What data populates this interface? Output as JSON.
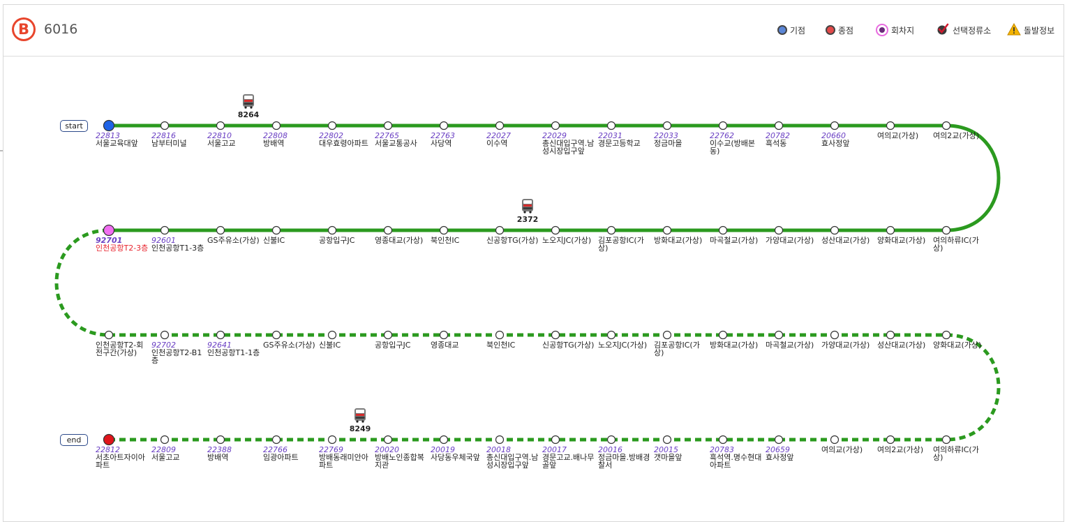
{
  "route": {
    "number": "6016",
    "logo_letter": "B",
    "logo_color": "#e8452c"
  },
  "legend": [
    {
      "key": "origin",
      "label": "기점",
      "icon": "blue-circle-icon",
      "color": "#5b86d6"
    },
    {
      "key": "terminus",
      "label": "종점",
      "icon": "red-circle-icon",
      "color": "#e8232d"
    },
    {
      "key": "turn",
      "label": "회차지",
      "icon": "pink-circle-icon",
      "color": "#e86be0"
    },
    {
      "key": "selected",
      "label": "선택정류소",
      "icon": "check-marker-icon",
      "color": "#c0192e"
    },
    {
      "key": "alert",
      "label": "돌발정보",
      "icon": "warning-triangle-icon",
      "color": "#f4b400"
    }
  ],
  "endpoints": {
    "start": "start",
    "end": "end"
  },
  "colors": {
    "line": "#2b9a1f",
    "origin": "#1f63e6",
    "terminus": "#e0151b",
    "turn": "#f06ef0"
  },
  "rows": [
    {
      "dashed": false,
      "direction": "ltr",
      "stops": [
        {
          "id": "22813",
          "name": "서울교육대앞",
          "marker": "origin"
        },
        {
          "id": "22816",
          "name": "남부터미널"
        },
        {
          "id": "22810",
          "name": "서울고교"
        },
        {
          "id": "22808",
          "name": "방배역"
        },
        {
          "id": "22802",
          "name": "대우효령아파트"
        },
        {
          "id": "22765",
          "name": "서울교통공사"
        },
        {
          "id": "22763",
          "name": "사당역"
        },
        {
          "id": "22027",
          "name": "이수역"
        },
        {
          "id": "22029",
          "name": "총신대입구역.남성시장입구앞"
        },
        {
          "id": "22031",
          "name": "경문고등학교"
        },
        {
          "id": "22033",
          "name": "정금마을"
        },
        {
          "id": "22762",
          "name": "이수교(방배본동)"
        },
        {
          "id": "20782",
          "name": "흑석동"
        },
        {
          "id": "20660",
          "name": "효사정앞"
        },
        {
          "id": "",
          "name": "여의교(가상)"
        },
        {
          "id": "",
          "name": "여의2교(가상)"
        }
      ]
    },
    {
      "dashed": false,
      "direction": "rtl",
      "stops": [
        {
          "id": "92701",
          "name": "인천공항T2-3층",
          "marker": "turn",
          "highlight": true
        },
        {
          "id": "92601",
          "name": "인천공항T1-3층"
        },
        {
          "id": "",
          "name": "GS주유소(가상)"
        },
        {
          "id": "",
          "name": "신불IC"
        },
        {
          "id": "",
          "name": "공항입구JC"
        },
        {
          "id": "",
          "name": "영종대교(가상)"
        },
        {
          "id": "",
          "name": "북인천IC"
        },
        {
          "id": "",
          "name": "신공항TG(가상)"
        },
        {
          "id": "",
          "name": "노오지JC(가상)"
        },
        {
          "id": "",
          "name": "김포공항IC(가상)"
        },
        {
          "id": "",
          "name": "방화대교(가상)"
        },
        {
          "id": "",
          "name": "마곡철교(가상)"
        },
        {
          "id": "",
          "name": "가양대교(가상)"
        },
        {
          "id": "",
          "name": "성산대교(가상)"
        },
        {
          "id": "",
          "name": "양화대교(가상)"
        },
        {
          "id": "",
          "name": "여의하류IC(가상)"
        }
      ]
    },
    {
      "dashed": true,
      "direction": "ltr",
      "stops": [
        {
          "id": "",
          "name": "인천공항T2-회전구간(가상)"
        },
        {
          "id": "92702",
          "name": "인천공항T2-B1층"
        },
        {
          "id": "92641",
          "name": "인천공항T1-1층"
        },
        {
          "id": "",
          "name": "GS주유소(가상)"
        },
        {
          "id": "",
          "name": "신불IC"
        },
        {
          "id": "",
          "name": "공항입구JC"
        },
        {
          "id": "",
          "name": "영종대교"
        },
        {
          "id": "",
          "name": "북인천IC"
        },
        {
          "id": "",
          "name": "신공항TG(가상)"
        },
        {
          "id": "",
          "name": "노오지JC(가상)"
        },
        {
          "id": "",
          "name": "김포공항IC(가상)"
        },
        {
          "id": "",
          "name": "방화대교(가상)"
        },
        {
          "id": "",
          "name": "마곡철교(가상)"
        },
        {
          "id": "",
          "name": "가양대교(가상)"
        },
        {
          "id": "",
          "name": "성산대교(가상)"
        },
        {
          "id": "",
          "name": "양화대교(가상)"
        }
      ]
    },
    {
      "dashed": true,
      "direction": "rtl",
      "stops": [
        {
          "id": "22812",
          "name": "서초아트자이아파트",
          "marker": "terminus"
        },
        {
          "id": "22809",
          "name": "서울고교"
        },
        {
          "id": "22388",
          "name": "방배역"
        },
        {
          "id": "22766",
          "name": "임광아파트"
        },
        {
          "id": "22769",
          "name": "방배동래미안아파트"
        },
        {
          "id": "20020",
          "name": "방배노인종합복지관"
        },
        {
          "id": "20019",
          "name": "사당동우체국앞"
        },
        {
          "id": "20018",
          "name": "총신대입구역.남성시장입구앞"
        },
        {
          "id": "20017",
          "name": "경문고교.배나무골앞"
        },
        {
          "id": "20016",
          "name": "정금마을.방배경찰서"
        },
        {
          "id": "20015",
          "name": "갯마을앞"
        },
        {
          "id": "20783",
          "name": "흑석역.명수현대아파트"
        },
        {
          "id": "20659",
          "name": "효사정앞"
        },
        {
          "id": "",
          "name": "여의교(가상)"
        },
        {
          "id": "",
          "name": "여의2교(가상)"
        },
        {
          "id": "",
          "name": "여의하류IC(가상)"
        }
      ]
    }
  ],
  "buses": [
    {
      "number": "8264",
      "row": 0,
      "after_stop": 2.5,
      "icon": "bus-icon"
    },
    {
      "number": "2372",
      "row": 1,
      "after_stop": 7.5,
      "icon": "bus-icon"
    },
    {
      "number": "8249",
      "row": 3,
      "after_stop": 4.5,
      "icon": "bus-icon"
    }
  ]
}
